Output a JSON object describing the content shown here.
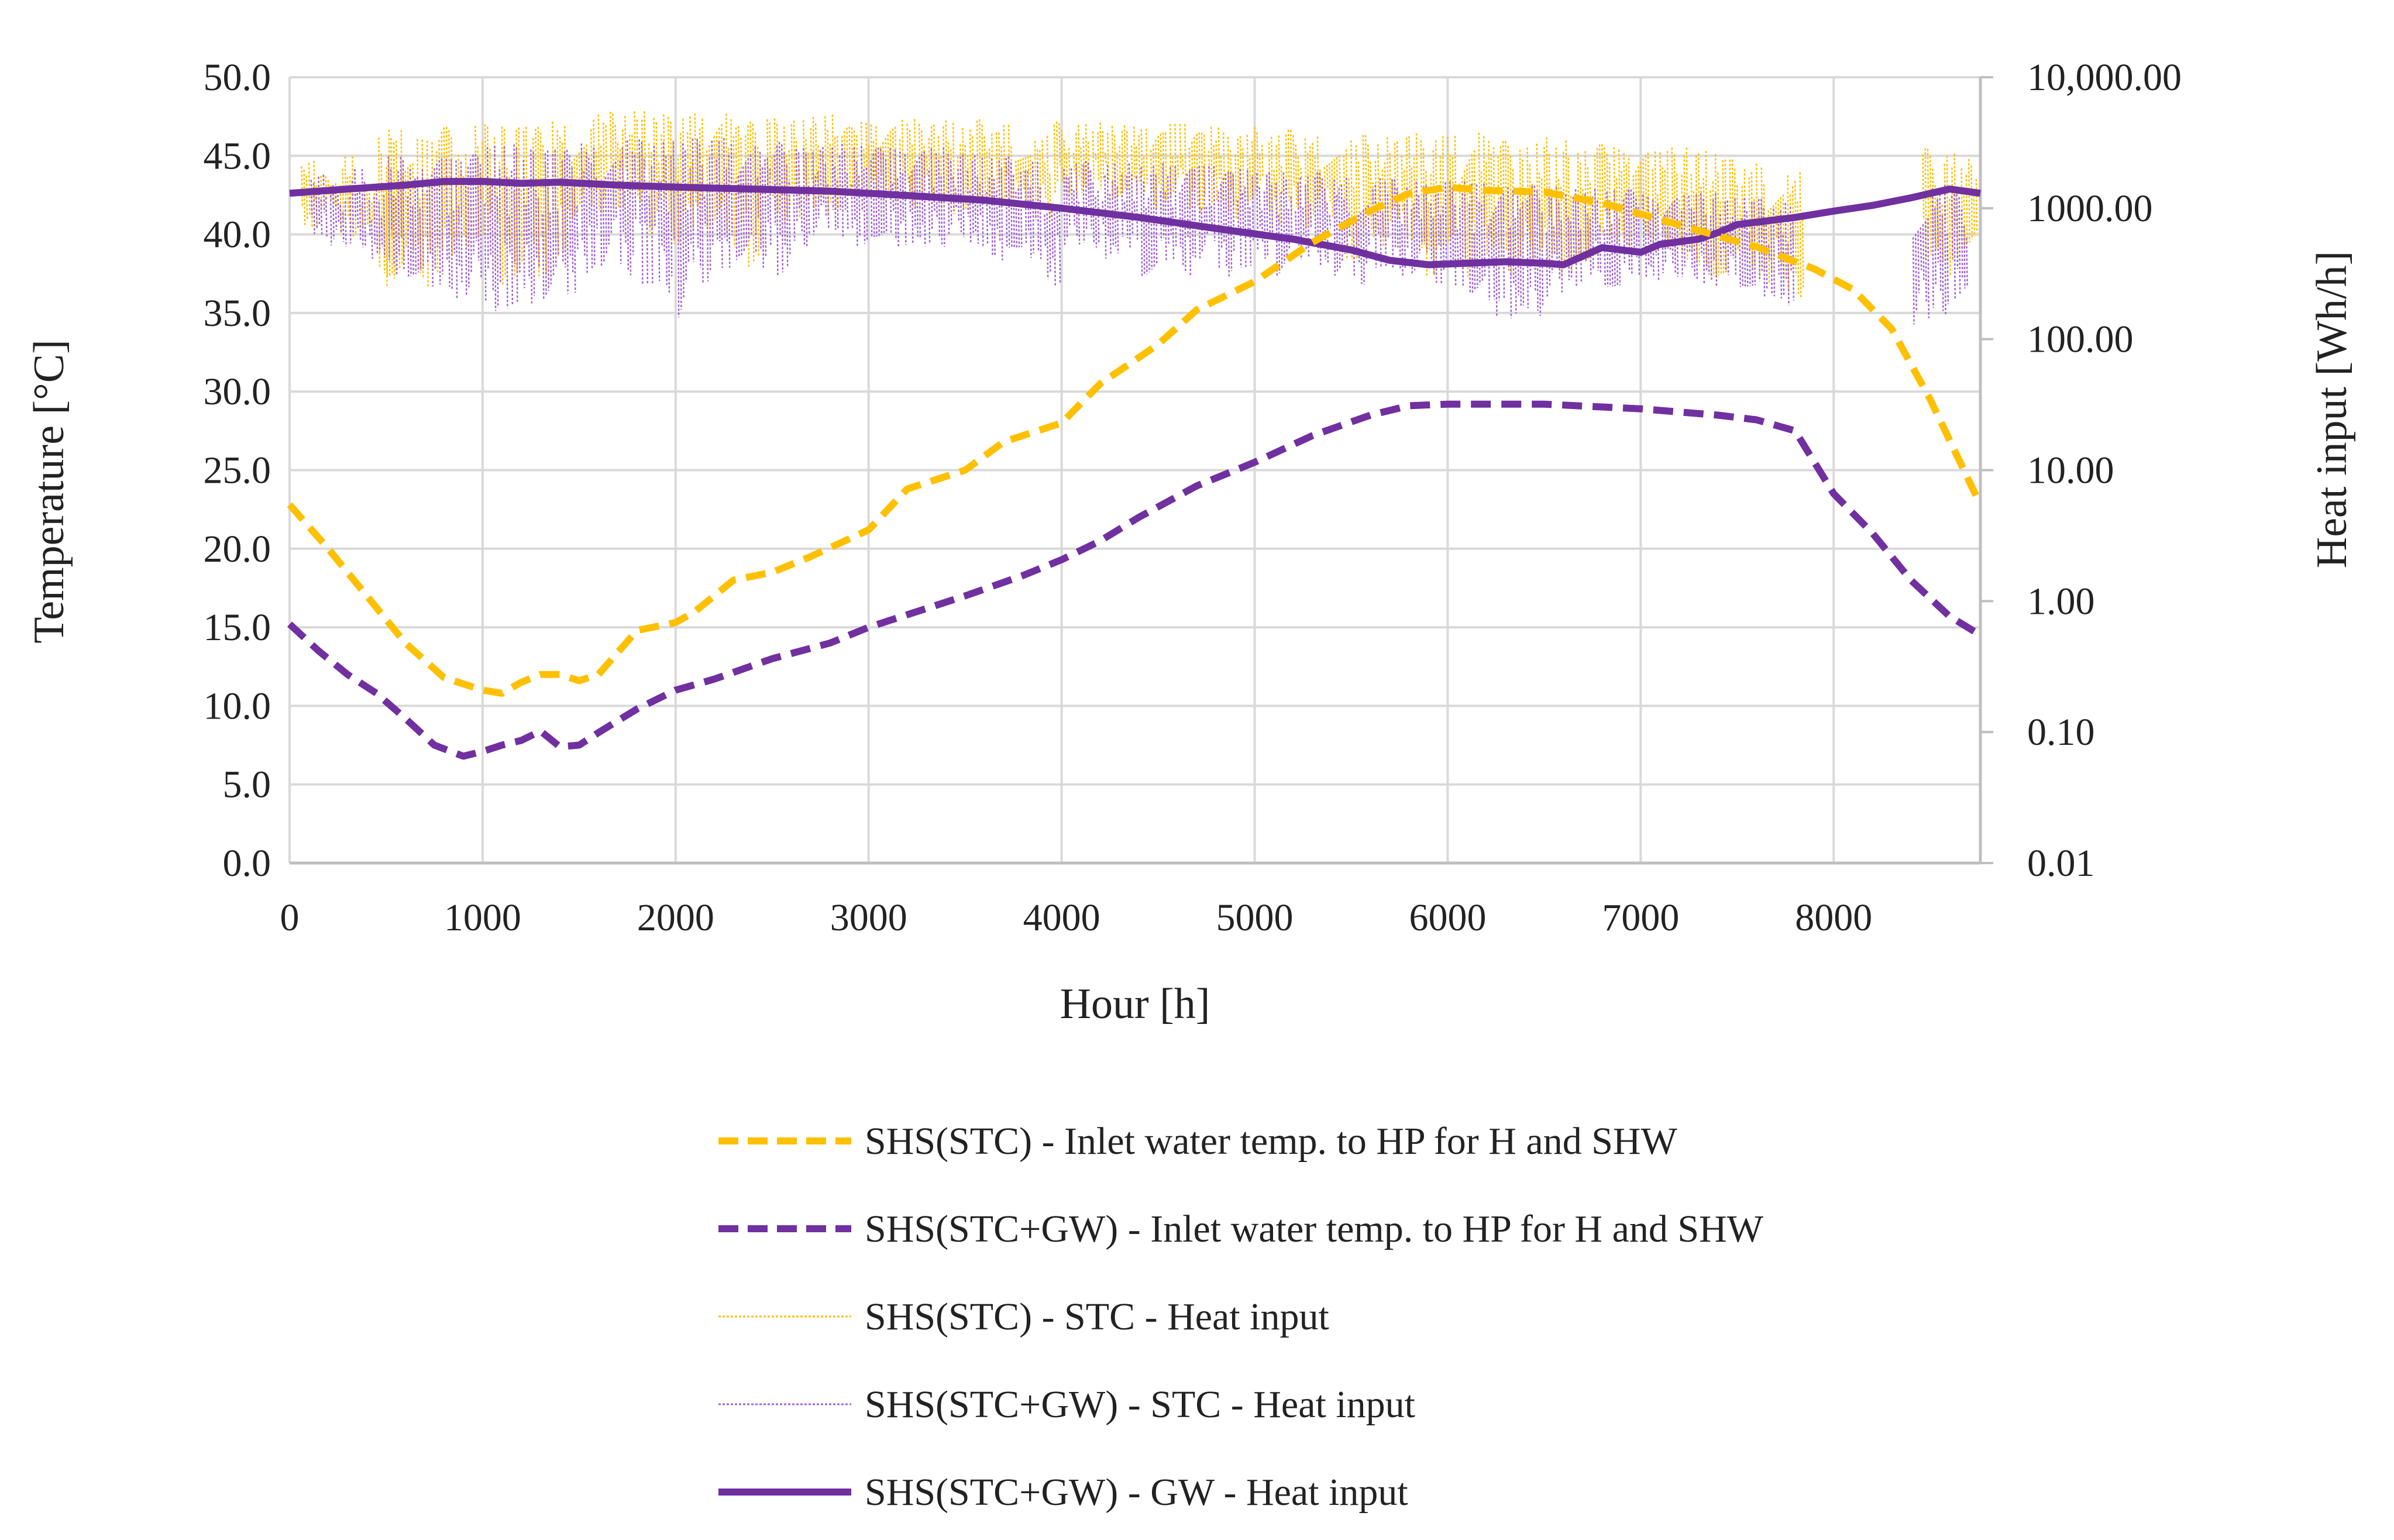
{
  "chart_data": {
    "type": "line",
    "title": "",
    "xlabel": "Hour [h]",
    "ylabel": "Temperature [°C]",
    "y2label": "Heat input [Wh/h]",
    "xlim": [
      0,
      8760
    ],
    "ylim": [
      0,
      50
    ],
    "y2lim": [
      0.01,
      10000
    ],
    "y2scale": "log",
    "grid": true,
    "legend_position": "bottom",
    "x_ticks": [
      0,
      1000,
      2000,
      3000,
      4000,
      5000,
      6000,
      7000,
      8000
    ],
    "x_tick_labels": [
      "0",
      "1000",
      "2000",
      "3000",
      "4000",
      "5000",
      "6000",
      "7000",
      "8000"
    ],
    "y_ticks": [
      0,
      5,
      10,
      15,
      20,
      25,
      30,
      35,
      40,
      45,
      50
    ],
    "y_tick_labels": [
      "0.0",
      "5.0",
      "10.0",
      "15.0",
      "20.0",
      "25.0",
      "30.0",
      "35.0",
      "40.0",
      "45.0",
      "50.0"
    ],
    "y2_ticks": [
      0.01,
      0.1,
      1,
      10,
      100,
      1000,
      10000
    ],
    "y2_tick_labels": [
      "0.01",
      "0.10",
      "1.00",
      "10.00",
      "100.00",
      "1000.00",
      "10,000.00"
    ],
    "series": [
      {
        "name": "SHS(STC) - Inlet water temp. to HP for H and SHW",
        "axis": "left",
        "style": "dashed",
        "color": "#FFC000",
        "x": [
          0,
          200,
          400,
          600,
          800,
          1000,
          1100,
          1200,
          1300,
          1400,
          1500,
          1600,
          1800,
          2000,
          2100,
          2300,
          2500,
          2700,
          3000,
          3200,
          3500,
          3700,
          4000,
          4200,
          4500,
          4700,
          5000,
          5300,
          5600,
          5800,
          6000,
          6200,
          6500,
          6800,
          7200,
          7600,
          7900,
          8100,
          8300,
          8500,
          8760
        ],
        "y": [
          22.8,
          20.0,
          17.0,
          14.0,
          11.8,
          11.0,
          10.8,
          11.5,
          12.0,
          12.0,
          11.6,
          12.0,
          14.8,
          15.3,
          16.0,
          18.0,
          18.5,
          19.5,
          21.2,
          23.8,
          25.0,
          26.8,
          28.0,
          30.5,
          33.0,
          35.2,
          37.0,
          39.5,
          41.5,
          42.6,
          43.0,
          42.8,
          42.7,
          42.0,
          40.6,
          39.2,
          37.8,
          36.5,
          34.0,
          29.5,
          22.8
        ]
      },
      {
        "name": "SHS(STC+GW) - Inlet water temp. to HP for H and SHW",
        "axis": "left",
        "style": "dashed",
        "color": "#7030A0",
        "x": [
          0,
          150,
          300,
          450,
          600,
          750,
          900,
          1000,
          1100,
          1200,
          1300,
          1400,
          1500,
          1600,
          1800,
          2000,
          2200,
          2500,
          2800,
          3000,
          3300,
          3500,
          3800,
          4000,
          4200,
          4400,
          4700,
          5000,
          5300,
          5600,
          5800,
          6000,
          6500,
          7000,
          7400,
          7600,
          7800,
          8000,
          8200,
          8400,
          8600,
          8760
        ],
        "y": [
          15.2,
          13.5,
          12.0,
          10.8,
          9.2,
          7.5,
          6.8,
          7.1,
          7.5,
          7.8,
          8.4,
          7.4,
          7.5,
          8.3,
          9.8,
          11.0,
          11.7,
          13.0,
          14.0,
          15.0,
          16.2,
          17.0,
          18.3,
          19.3,
          20.5,
          22.0,
          24.0,
          25.5,
          27.2,
          28.5,
          29.1,
          29.2,
          29.2,
          28.9,
          28.5,
          28.2,
          27.5,
          23.5,
          21.0,
          18.0,
          15.7,
          14.5
        ]
      },
      {
        "name": "SHS(STC) - STC - Heat input",
        "axis": "right",
        "style": "dotted",
        "color": "#FFC000",
        "x": [
          100,
          200,
          300,
          400,
          500,
          540,
          600,
          700,
          800,
          900,
          1000,
          1100,
          1200,
          1300,
          1400,
          1500,
          1600,
          1700,
          1800,
          1900,
          2000,
          2100,
          2200,
          2300,
          2400,
          2500,
          2600,
          2700,
          2800,
          2900,
          3000,
          3100,
          3200,
          3300,
          3400,
          3500,
          3600,
          3700,
          3800,
          3900,
          4000,
          4100,
          4200,
          4300,
          4400,
          4500,
          4600,
          4700,
          4800,
          4900,
          5000,
          5100,
          5200,
          5300,
          5400,
          5500,
          5600,
          5700,
          5800,
          5900,
          6000,
          6100,
          6200,
          6300,
          6400,
          6500,
          6600,
          6700,
          6800,
          6900,
          7000,
          7100,
          7200,
          7300,
          7400,
          7500,
          7600,
          7700,
          7800,
          8500,
          8600,
          8700
        ],
        "y_max": [
          2300,
          1800,
          2500,
          1500,
          3500,
          4000,
          2200,
          3400,
          4200,
          2600,
          4500,
          4500,
          4800,
          4200,
          5000,
          4200,
          5200,
          5500,
          5600,
          5200,
          5000,
          5400,
          5600,
          5600,
          4600,
          5200,
          4800,
          5000,
          5200,
          4200,
          4600,
          4300,
          4800,
          4400,
          4800,
          4100,
          4800,
          4400,
          4400,
          3600,
          4600,
          4400,
          4500,
          4300,
          4200,
          3800,
          4400,
          3800,
          4200,
          3600,
          4200,
          3700,
          4000,
          3700,
          3900,
          3300,
          3700,
          3500,
          3800,
          3300,
          3700,
          3200,
          3900,
          3300,
          3000,
          3500,
          3300,
          2800,
          3100,
          3000,
          2900,
          2800,
          2900,
          2800,
          2600,
          2400,
          2200,
          2400,
          2000,
          2900,
          2700,
          2400
        ],
        "y_min": [
          700,
          1000,
          600,
          700,
          250,
          300,
          400,
          250,
          300,
          500,
          600,
          250,
          300,
          300,
          400,
          800,
          900,
          1000,
          1100,
          600,
          500,
          700,
          700,
          500,
          350,
          900,
          700,
          1000,
          900,
          1300,
          1200,
          1100,
          1000,
          1100,
          900,
          900,
          1100,
          1000,
          1000,
          800,
          1200,
          1200,
          1400,
          1200,
          1300,
          900,
          1200,
          900,
          1100,
          800,
          1100,
          700,
          900,
          700,
          800,
          400,
          600,
          500,
          550,
          300,
          500,
          300,
          400,
          300,
          350,
          400,
          300,
          400,
          600,
          500,
          600,
          500,
          400,
          350,
          300,
          400,
          300,
          250,
          200,
          400,
          300,
          500
        ]
      },
      {
        "name": "SHS(STC+GW) - STC - Heat input",
        "axis": "right",
        "style": "dotted",
        "color": "#A265D6",
        "x": [
          150,
          250,
          350,
          450,
          550,
          650,
          750,
          850,
          950,
          1050,
          1150,
          1250,
          1350,
          1450,
          1550,
          1650,
          1750,
          1850,
          1950,
          2050,
          2150,
          2250,
          2350,
          2450,
          2550,
          2650,
          2750,
          2850,
          2950,
          3050,
          3150,
          3250,
          3350,
          3450,
          3550,
          3650,
          3750,
          3850,
          3950,
          4050,
          4150,
          4250,
          4350,
          4450,
          4550,
          4650,
          4750,
          4850,
          4950,
          5050,
          5150,
          5250,
          5350,
          5450,
          5550,
          5650,
          5750,
          5850,
          5950,
          6050,
          6150,
          6250,
          6350,
          6450,
          6550,
          6650,
          6750,
          6850,
          6950,
          7050,
          7150,
          7250,
          7350,
          7450,
          7550,
          7650,
          7750,
          8450,
          8550,
          8650
        ],
        "y_max": [
          1800,
          1500,
          2000,
          1400,
          2500,
          2000,
          2400,
          2400,
          2600,
          3000,
          3200,
          3000,
          3200,
          2800,
          3400,
          3500,
          3300,
          3400,
          3300,
          3400,
          3400,
          3500,
          3300,
          3100,
          3200,
          3100,
          3000,
          3100,
          3000,
          2900,
          2900,
          2800,
          2900,
          2600,
          2600,
          2400,
          2500,
          2300,
          2400,
          2200,
          2300,
          2200,
          2200,
          2100,
          2200,
          2000,
          2100,
          1900,
          2000,
          1900,
          1900,
          1800,
          1900,
          1800,
          1800,
          1700,
          1700,
          1600,
          1600,
          1600,
          1600,
          1500,
          1500,
          1500,
          1500,
          1400,
          1400,
          1400,
          1400,
          1300,
          1300,
          1300,
          1300,
          1200,
          1200,
          1200,
          1100,
          1800,
          1600,
          1400
        ],
        "y_min": [
          600,
          500,
          500,
          400,
          300,
          300,
          250,
          200,
          200,
          160,
          170,
          180,
          200,
          220,
          300,
          350,
          300,
          260,
          220,
          140,
          250,
          350,
          400,
          350,
          300,
          500,
          600,
          600,
          500,
          600,
          500,
          500,
          500,
          600,
          500,
          400,
          500,
          400,
          250,
          500,
          500,
          400,
          500,
          300,
          400,
          300,
          400,
          300,
          350,
          400,
          300,
          400,
          350,
          300,
          250,
          350,
          300,
          300,
          250,
          250,
          220,
          150,
          140,
          150,
          200,
          250,
          300,
          250,
          300,
          280,
          300,
          280,
          250,
          300,
          250,
          200,
          180,
          120,
          150,
          200
        ]
      },
      {
        "name": "SHS(STC+GW) - GW - Heat input",
        "axis": "right",
        "style": "solid",
        "color": "#7030A0",
        "x": [
          0,
          300,
          600,
          800,
          1000,
          1200,
          1400,
          1700,
          2000,
          2400,
          2800,
          3200,
          3600,
          4000,
          4400,
          4800,
          5200,
          5500,
          5700,
          5900,
          6100,
          6300,
          6500,
          6600,
          6700,
          6800,
          6900,
          7000,
          7100,
          7300,
          7400,
          7500,
          7800,
          8000,
          8200,
          8400,
          8600,
          8760
        ],
        "y": [
          1300,
          1400,
          1500,
          1600,
          1600,
          1550,
          1580,
          1500,
          1450,
          1400,
          1350,
          1250,
          1150,
          1000,
          850,
          700,
          580,
          480,
          400,
          370,
          380,
          390,
          380,
          370,
          430,
          500,
          480,
          460,
          530,
          580,
          650,
          750,
          850,
          950,
          1050,
          1200,
          1400,
          1300
        ]
      }
    ]
  }
}
